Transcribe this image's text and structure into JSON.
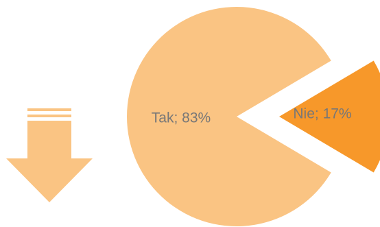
{
  "chart_data": {
    "type": "pie",
    "title": "",
    "slices": [
      {
        "label": "Tak",
        "value": 83,
        "label_text": "Tak; 83%",
        "color": "#fac483",
        "exploded": false
      },
      {
        "label": "Nie",
        "value": 17,
        "label_text": "Nie; 17%",
        "color": "#f7982a",
        "exploded": true
      }
    ],
    "legend": "none"
  },
  "decoration": {
    "arrow_icon": "down-arrow-icon",
    "arrow_color": "#fac483"
  }
}
